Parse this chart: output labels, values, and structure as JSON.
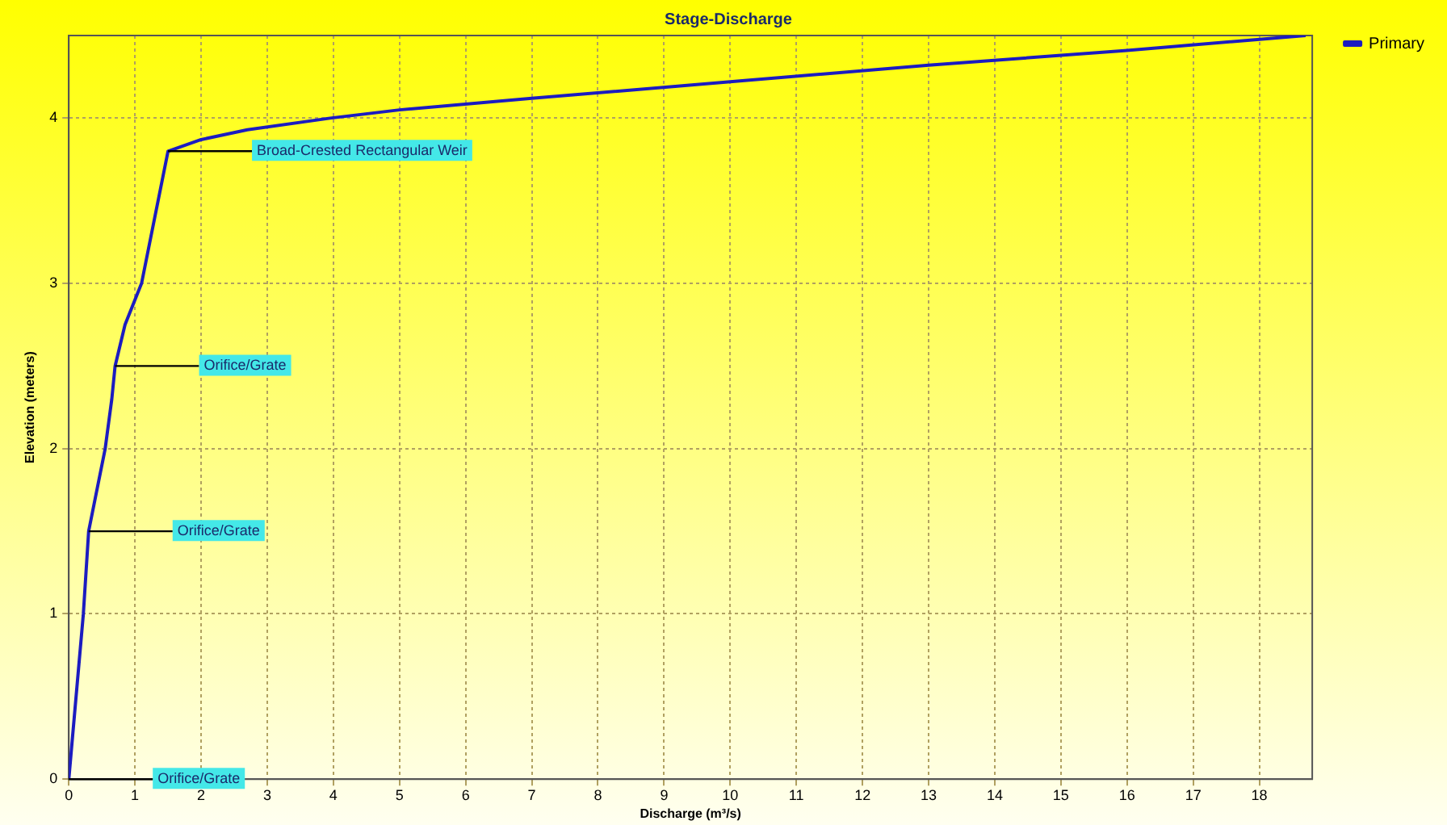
{
  "chart_data": {
    "type": "line",
    "title": "Stage-Discharge",
    "xlabel": "Discharge (m³/s)",
    "ylabel": "Elevation (meters)",
    "xlim": [
      0,
      18.8
    ],
    "ylim": [
      0,
      4.5
    ],
    "xticks": [
      0,
      1,
      2,
      3,
      4,
      5,
      6,
      7,
      8,
      9,
      10,
      11,
      12,
      13,
      14,
      15,
      16,
      17,
      18
    ],
    "yticks": [
      0,
      1,
      2,
      3,
      4
    ],
    "grid": true,
    "legend": "top right",
    "marker": "none",
    "line_style": "solid",
    "series": [
      {
        "name": "Primary",
        "color": "#1c1cc0",
        "x": [
          0,
          0.22,
          0.3,
          0.4,
          0.55,
          0.65,
          0.7,
          0.85,
          1.1,
          1.3,
          1.5,
          2.0,
          2.7,
          3.95,
          5,
          7,
          10,
          13,
          16,
          18.7
        ],
        "values": [
          0,
          1,
          1.5,
          1.7,
          2.0,
          2.3,
          2.5,
          2.75,
          3.0,
          3.4,
          3.8,
          3.87,
          3.93,
          4.0,
          4.05,
          4.12,
          4.22,
          4.32,
          4.41,
          4.5
        ]
      }
    ],
    "annotations": [
      {
        "text": "Broad-Crested Rectangular Weir",
        "x": 1.5,
        "y": 3.8
      },
      {
        "text": "Orifice/Grate",
        "x": 0.7,
        "y": 2.5
      },
      {
        "text": "Orifice/Grate",
        "x": 0.3,
        "y": 1.5
      },
      {
        "text": "Orifice/Grate",
        "x": 0,
        "y": 0
      }
    ]
  }
}
